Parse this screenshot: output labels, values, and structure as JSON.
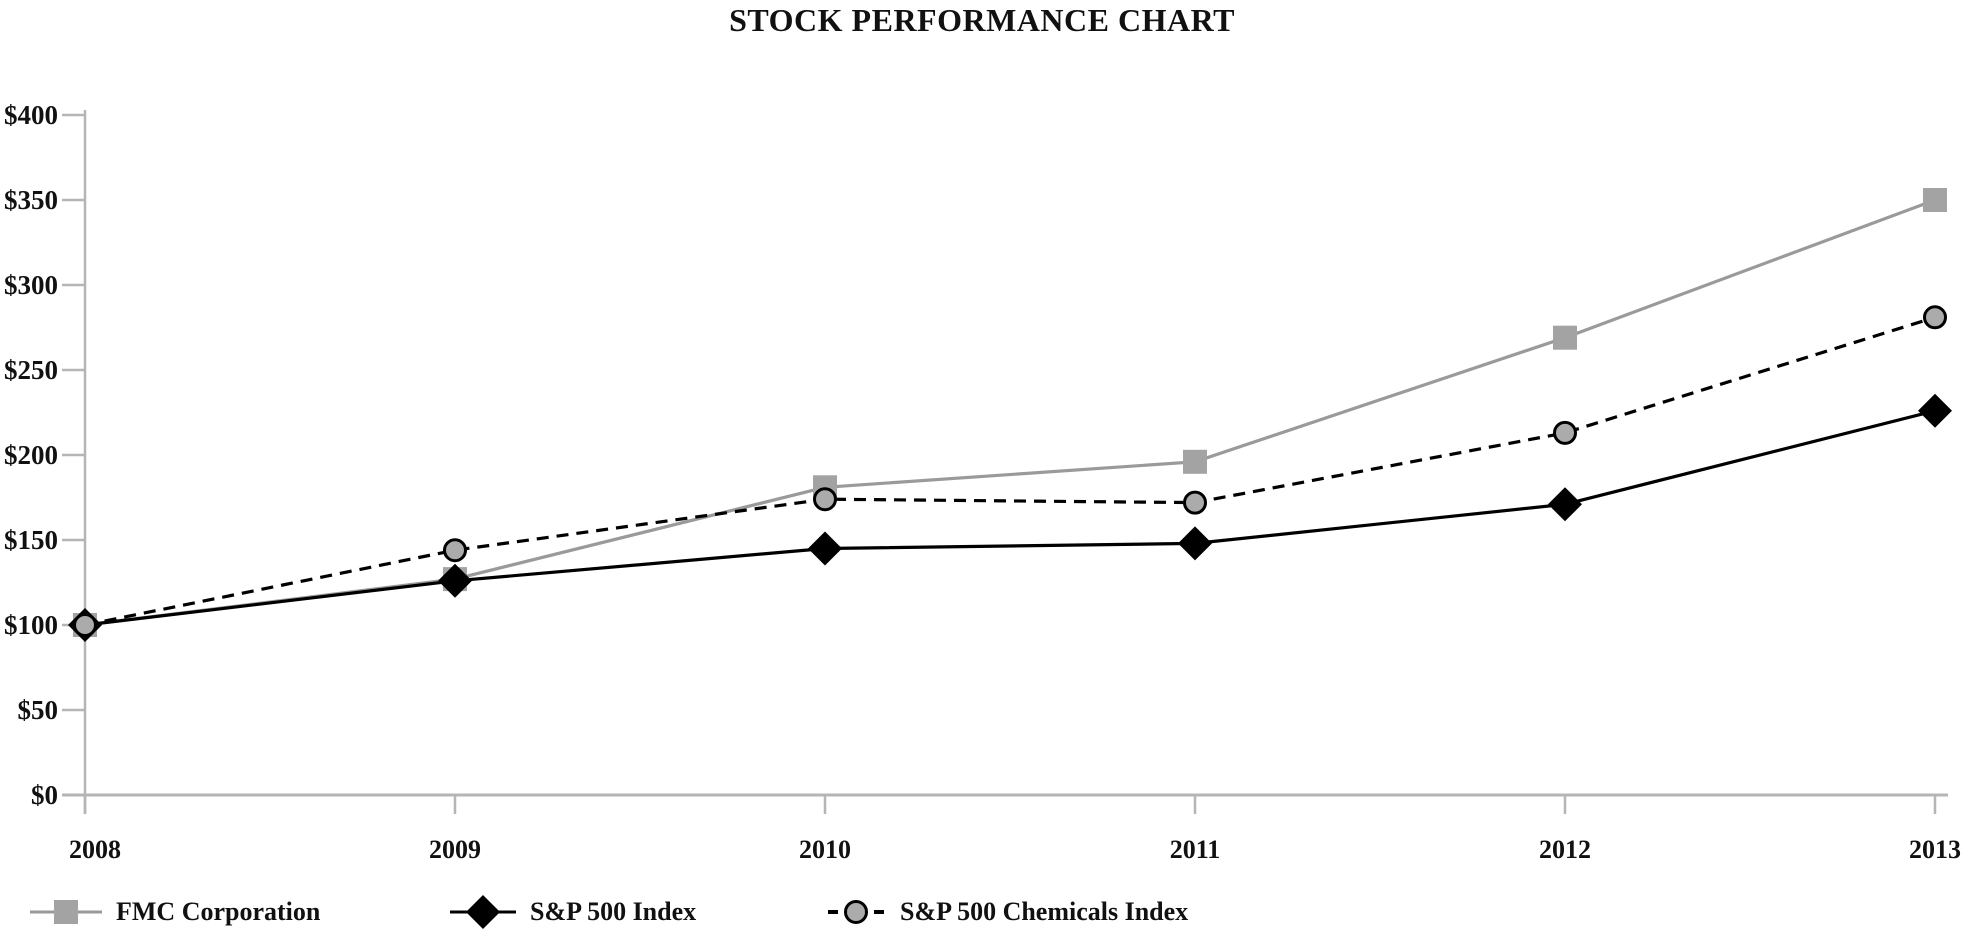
{
  "chart_data": {
    "type": "line",
    "title": "STOCK PERFORMANCE CHART",
    "x_tick_labels": [
      "2008",
      "2009",
      "2010",
      "2011",
      "2012",
      "2013"
    ],
    "y_ticks": [
      {
        "label": "$0",
        "value": 0
      },
      {
        "label": "$50",
        "value": 50
      },
      {
        "label": "$100",
        "value": 100
      },
      {
        "label": "$150",
        "value": 150
      },
      {
        "label": "$200",
        "value": 200
      },
      {
        "label": "$250",
        "value": 250
      },
      {
        "label": "$300",
        "value": 300
      },
      {
        "label": "$350",
        "value": 350
      },
      {
        "label": "$400",
        "value": 400
      }
    ],
    "ylim": [
      0,
      400
    ],
    "grid": false,
    "legend_position": "bottom",
    "series": [
      {
        "name": "FMC Corporation",
        "marker": "square",
        "line_style": "solid",
        "line_color": "#9a9a9a",
        "marker_fill": "#a3a3a3",
        "values": [
          100,
          127,
          181,
          196,
          269,
          350
        ]
      },
      {
        "name": "S&P 500 Index",
        "marker": "diamond",
        "line_style": "solid",
        "line_color": "#000000",
        "marker_fill": "#000000",
        "values": [
          100,
          126,
          145,
          148,
          171,
          226
        ]
      },
      {
        "name": "S&P 500 Chemicals Index",
        "marker": "circle",
        "line_style": "dashed",
        "line_color": "#000000",
        "marker_fill": "#ababab",
        "values": [
          100,
          144,
          174,
          172,
          213,
          281
        ]
      }
    ],
    "colors": {
      "axis": "#b5b5b5",
      "text": "#111111"
    }
  }
}
